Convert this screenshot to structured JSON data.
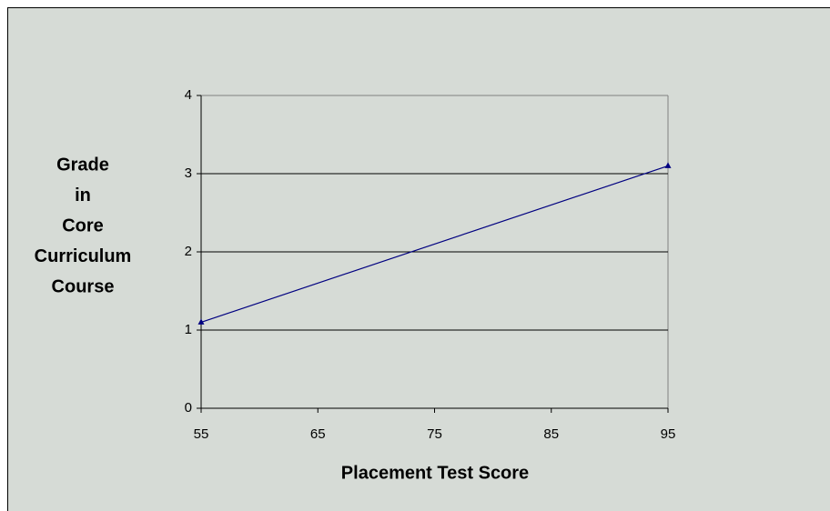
{
  "chart_data": {
    "type": "line",
    "xlabel": "Placement Test Score",
    "ylabel": [
      "Grade",
      "in",
      "Core",
      "Curriculum",
      "Course"
    ],
    "x": [
      55,
      95
    ],
    "series": [
      {
        "name": "Grade",
        "color": "#000080",
        "values": [
          1.1,
          3.1
        ]
      }
    ],
    "xlim": [
      55,
      95
    ],
    "xticks": [
      55,
      65,
      75,
      85,
      95
    ],
    "ylim": [
      0,
      4
    ],
    "yticks": [
      0,
      1,
      2,
      3,
      4
    ],
    "grid": true
  }
}
